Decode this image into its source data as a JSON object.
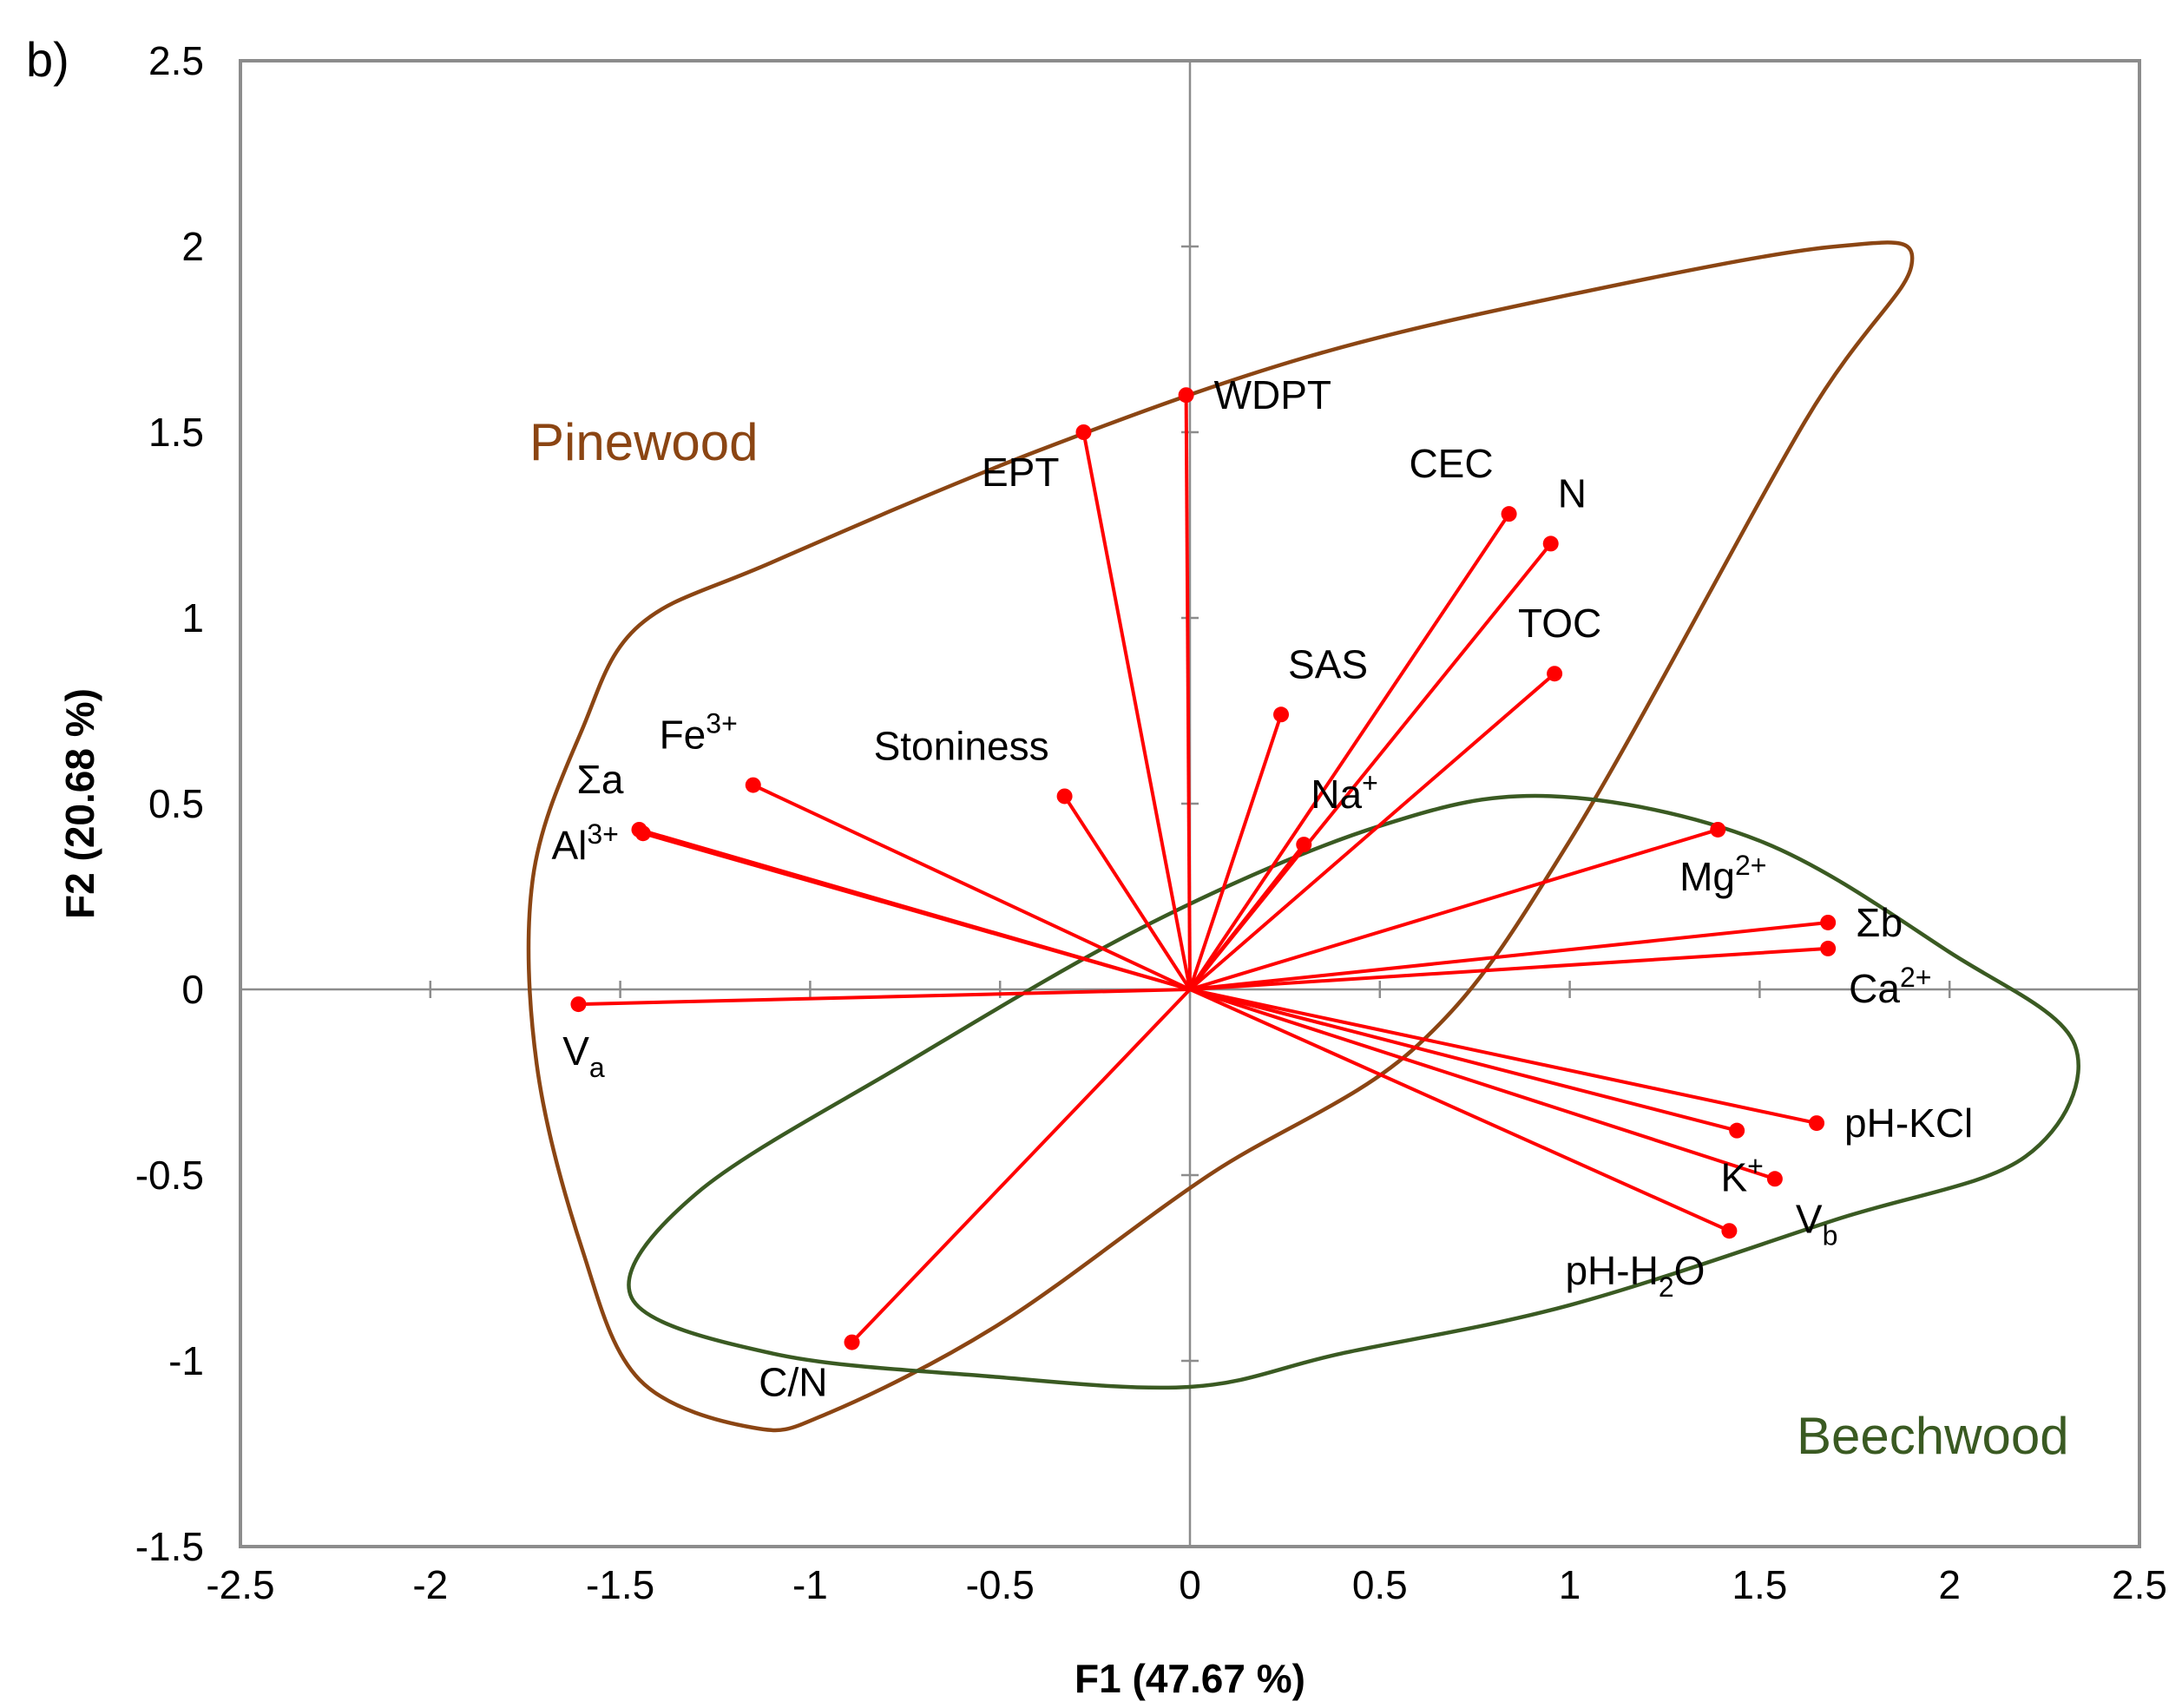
{
  "panel_label": "b)",
  "chart_data": {
    "type": "biplot",
    "xlabel": "F1 (47.67 %)",
    "ylabel": "F2 (20.68 %)",
    "xlim": [
      -2.5,
      2.5
    ],
    "ylim": [
      -1.5,
      2.5
    ],
    "x_ticks": [
      -2.5,
      -2,
      -1.5,
      -1,
      -0.5,
      0,
      0.5,
      1,
      1.5,
      2,
      2.5
    ],
    "y_ticks": [
      -1.5,
      -1,
      -0.5,
      0,
      0.5,
      1,
      1.5,
      2,
      2.5
    ],
    "x_tick_labels": [
      "-2.5",
      "-2",
      "-1.5",
      "-1",
      "-0.5",
      "0",
      "0.5",
      "1",
      "1.5",
      "2",
      "2.5"
    ],
    "y_tick_labels": [
      "-1.5",
      "-1",
      "-0.5",
      "0",
      "0.5",
      "1",
      "1.5",
      "2",
      "2.5"
    ],
    "vector_color": "#ff0000",
    "variables": [
      {
        "name": "WDPT",
        "x": -0.01,
        "y": 1.6,
        "label_pos": "right"
      },
      {
        "name": "EPT",
        "x": -0.28,
        "y": 1.5,
        "label_pos": "below-left"
      },
      {
        "name": "CEC",
        "x": 0.84,
        "y": 1.28,
        "label_pos": "above-left"
      },
      {
        "name": "N",
        "x": 0.95,
        "y": 1.2,
        "label_pos": "above-right"
      },
      {
        "name": "TOC",
        "x": 0.96,
        "y": 0.85,
        "label_pos": "above"
      },
      {
        "name": "SAS",
        "x": 0.24,
        "y": 0.74,
        "label_pos": "above-right"
      },
      {
        "name": "Na",
        "sup": "+",
        "x": 0.3,
        "y": 0.39,
        "label_pos": "above-right"
      },
      {
        "name": "Stoniness",
        "x": -0.33,
        "y": 0.52,
        "label_pos": "above-left"
      },
      {
        "name": "Fe",
        "sup": "3+",
        "x": -1.15,
        "y": 0.55,
        "label_pos": "above-left"
      },
      {
        "name": "Σa",
        "x": -1.45,
        "y": 0.43,
        "label_pos": "above-left"
      },
      {
        "name": "Al",
        "sup": "3+",
        "x": -1.44,
        "y": 0.42,
        "label_pos": "left"
      },
      {
        "name": "V",
        "sub": "a",
        "x": -1.61,
        "y": -0.04,
        "label_pos": "below"
      },
      {
        "name": "C/N",
        "x": -0.89,
        "y": -0.95,
        "label_pos": "below-left"
      },
      {
        "name": "Mg",
        "sup": "2+",
        "x": 1.39,
        "y": 0.43,
        "label_pos": "below"
      },
      {
        "name": "Σb",
        "x": 1.68,
        "y": 0.18,
        "label_pos": "right"
      },
      {
        "name": "Ca",
        "sup": "2+",
        "x": 1.68,
        "y": 0.11,
        "label_pos": "below-right"
      },
      {
        "name": "pH-KCl",
        "x": 1.65,
        "y": -0.36,
        "label_pos": "right"
      },
      {
        "name": "K",
        "sup": "+",
        "x": 1.44,
        "y": -0.38,
        "label_pos": "below"
      },
      {
        "name": "V",
        "sub": "b",
        "x": 1.54,
        "y": -0.51,
        "label_pos": "below-right"
      },
      {
        "name": "pH-H",
        "sub": "2",
        "tail": "O",
        "x": 1.42,
        "y": -0.65,
        "label_pos": "below-left"
      }
    ],
    "groups": [
      {
        "name": "Pinewood",
        "color": "#8b4513"
      },
      {
        "name": "Beechwood",
        "color": "#3a5a22"
      }
    ]
  }
}
